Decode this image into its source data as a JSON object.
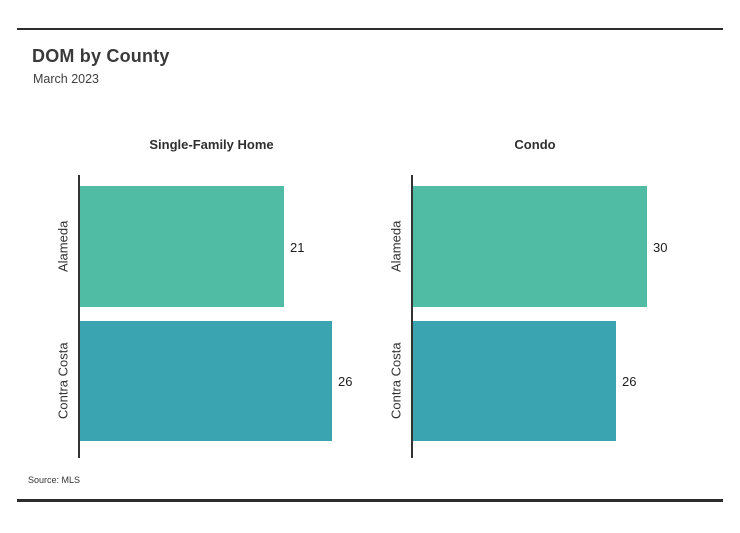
{
  "header": {
    "title": "DOM by County",
    "subtitle": "March 2023"
  },
  "footer": {
    "source": "Source: MLS"
  },
  "colors": {
    "bar_alameda": "#50bca4",
    "bar_contra_costa": "#3aa4b0",
    "rule": "#2d2d2d",
    "axis": "#333333"
  },
  "chart_data": {
    "type": "bar",
    "orientation": "horizontal",
    "title": "DOM by County",
    "subtitle": "March 2023",
    "source": "Source: MLS",
    "categories": [
      "Alameda",
      "Contra Costa"
    ],
    "panels": [
      {
        "title": "Single-Family Home",
        "values": [
          21,
          26
        ],
        "xlim": [
          0,
          27.3
        ]
      },
      {
        "title": "Condo",
        "values": [
          30,
          26
        ],
        "xlim": [
          0,
          31.5
        ]
      }
    ],
    "series_colors": [
      "#50bca4",
      "#3aa4b0"
    ],
    "grid": false,
    "value_labels": true,
    "legend": false
  }
}
